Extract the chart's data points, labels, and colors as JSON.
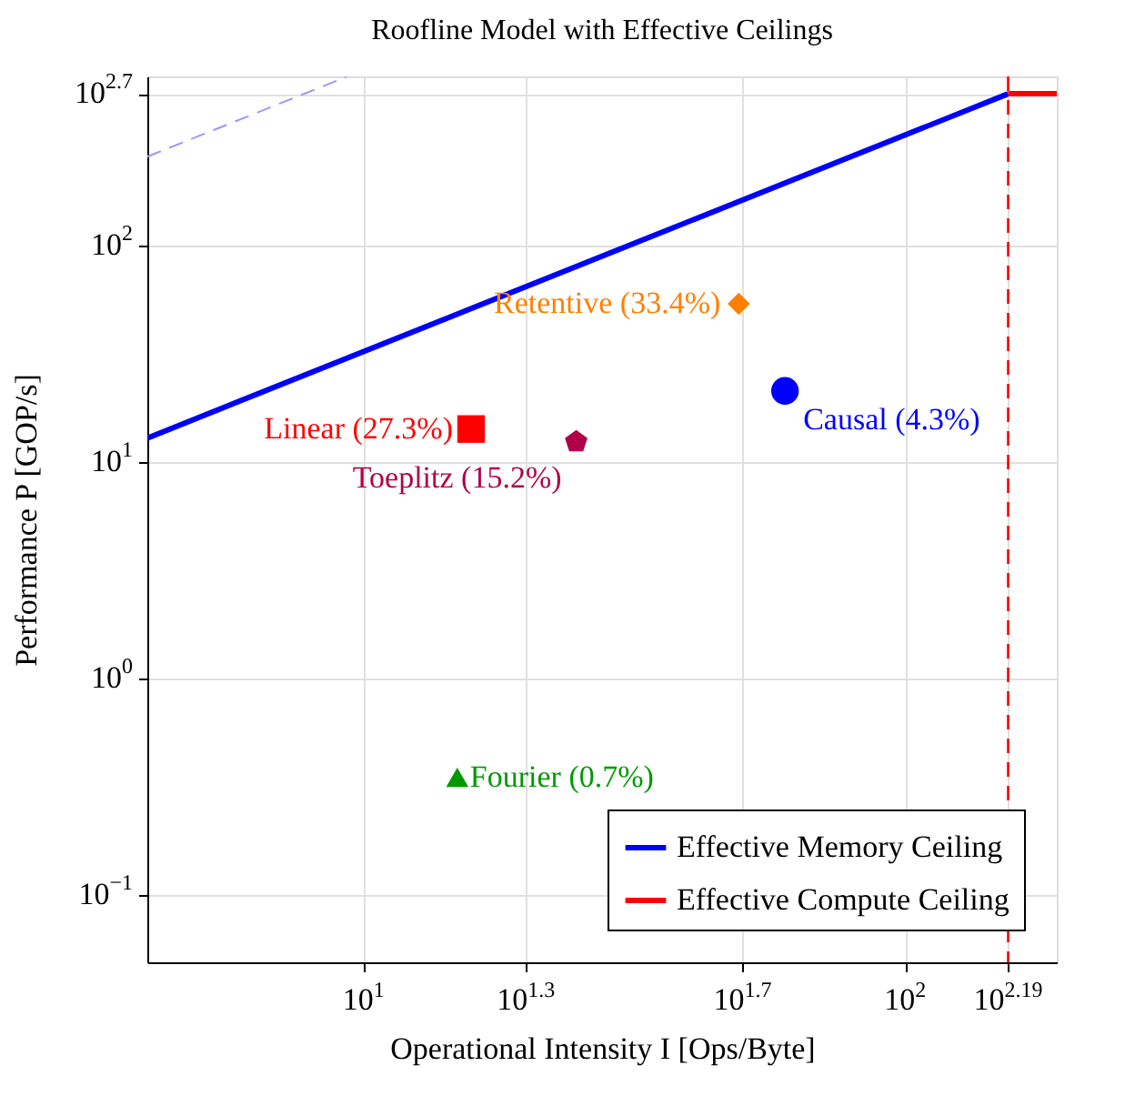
{
  "chart_data": {
    "type": "line",
    "title": "Roofline Model with Effective Ceilings",
    "xlabel": "Operational Intensity I [Ops/Byte]",
    "ylabel": "Performance P [GOP/s]",
    "log": "xy",
    "grid": true,
    "legend": "bottom right",
    "xlim": [
      3.99,
      190.5
    ],
    "ylim": [
      0.049,
      603
    ],
    "xticks": [
      {
        "value": 10,
        "label": "10$^{1}$"
      },
      {
        "value": 19.95,
        "label": "10$^{1.3}$"
      },
      {
        "value": 50.12,
        "label": "10$^{1.7}$"
      },
      {
        "value": 100,
        "label": "10$^{2}$"
      },
      {
        "value": 154.9,
        "label": "10$^{2.19}$"
      }
    ],
    "yticks": [
      {
        "value": 0.1,
        "label": "10$^{−1}$"
      },
      {
        "value": 1,
        "label": "10$^{0}$"
      },
      {
        "value": 10,
        "label": "10$^{1}$"
      },
      {
        "value": 100,
        "label": "10$^{2}$"
      },
      {
        "value": 501.2,
        "label": "10$^{2.7}$"
      }
    ],
    "ref_lines": [
      {
        "axis": "x",
        "value": 154.9,
        "color": "#ff0000",
        "line_style": "dashed"
      }
    ],
    "series": [
      {
        "color": "#9999ff",
        "line_style": "dashed",
        "x": [
          3.99,
          9.3
        ],
        "values": [
          257,
          600
        ]
      },
      {
        "name": "Effective Memory Ceiling",
        "color": "#0000ff",
        "line_style": "solid",
        "x": [
          3.99,
          154.9
        ],
        "values": [
          12.9,
          501.2
        ]
      },
      {
        "name": "Effective Compute Ceiling",
        "color": "#ff0000",
        "line_style": "solid",
        "x": [
          154.9,
          190.5
        ],
        "values": [
          501.2,
          501.2
        ]
      },
      {
        "type": "scatter",
        "name": "Retentive (33.4%)",
        "color": "#ff8000",
        "marker": "diamond",
        "x": [
          49.3
        ],
        "values": [
          53.8
        ]
      },
      {
        "type": "scatter",
        "name": "Causal (4.3%)",
        "color": "#0000ff",
        "marker": "circle",
        "x": [
          60.0
        ],
        "values": [
          21.3
        ]
      },
      {
        "type": "scatter",
        "name": "Linear (27.3%)",
        "color": "#ff0000",
        "marker": "square",
        "x": [
          15.8
        ],
        "values": [
          14.2
        ]
      },
      {
        "type": "scatter",
        "name": "Toeplitz (15.2%)",
        "color": "#b0004a",
        "x": [
          24.7
        ],
        "values": [
          12.4
        ]
      },
      {
        "type": "scatter",
        "name": "Fourier (0.7%)",
        "color": "#009900",
        "marker": "triangle",
        "x": [
          14.9
        ],
        "values": [
          0.35
        ]
      }
    ]
  }
}
